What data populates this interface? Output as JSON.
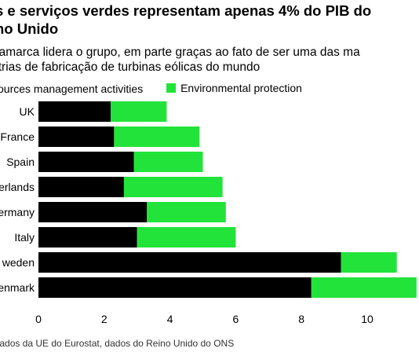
{
  "title_lines": [
    "s e serviços verdes representam apenas 4% do PIB do",
    "no Unido"
  ],
  "subtitle_lines": [
    "namarca lidera o grupo, em parte graças ao fato de ser uma das ma",
    "strias de fabricação de turbinas eólicas do mundo"
  ],
  "footer": ": dados da UE do Eurostat, dados do Reino Unido do ONS",
  "chart_data": {
    "type": "bar",
    "orientation": "horizontal",
    "stacked": true,
    "categories": [
      "UK",
      "France",
      "Spain",
      "erlands",
      "ermany",
      "Italy",
      "weden",
      "enmark"
    ],
    "series": [
      {
        "name": "sources management activities",
        "color": "#000000",
        "values": [
          2.2,
          2.3,
          2.9,
          2.6,
          3.3,
          3.0,
          9.2,
          8.3
        ]
      },
      {
        "name": "Environmental protection",
        "color": "#22e33a",
        "values": [
          1.7,
          2.6,
          2.1,
          3.0,
          2.4,
          3.0,
          1.7,
          3.2
        ]
      }
    ],
    "x_ticks": [
      0,
      2,
      4,
      6,
      8,
      10
    ],
    "xlim": [
      0,
      11.5
    ],
    "grid": false,
    "legend_position": "top-left"
  }
}
